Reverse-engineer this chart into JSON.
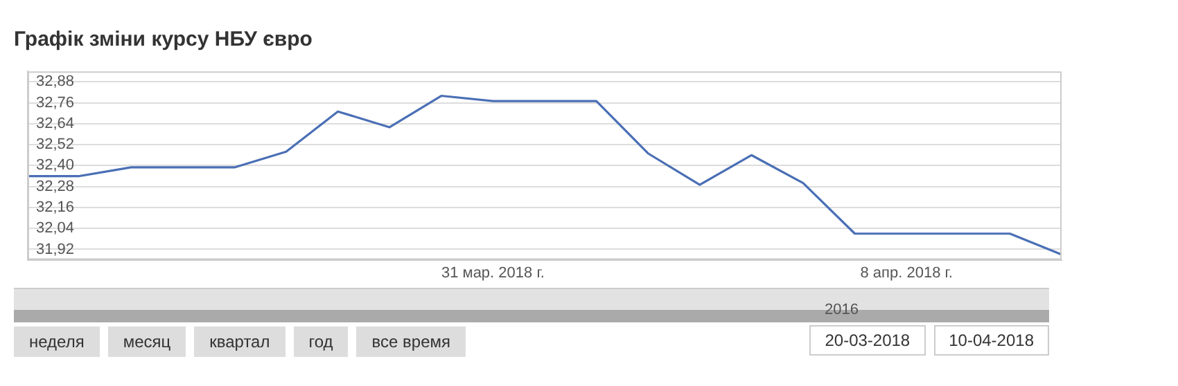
{
  "chart_data": {
    "type": "line",
    "title": "Графік зміни курсу НБУ євро",
    "x": [
      "2018-03-22",
      "2018-03-23",
      "2018-03-24",
      "2018-03-25",
      "2018-03-26",
      "2018-03-27",
      "2018-03-28",
      "2018-03-29",
      "2018-03-30",
      "2018-03-31",
      "2018-04-01",
      "2018-04-02",
      "2018-04-03",
      "2018-04-04",
      "2018-04-05",
      "2018-04-06",
      "2018-04-07",
      "2018-04-08",
      "2018-04-09",
      "2018-04-10",
      "2018-04-11"
    ],
    "series": [
      {
        "color": "#4a6fb5",
        "values": [
          32.34,
          32.34,
          32.39,
          32.39,
          32.39,
          32.48,
          32.71,
          32.62,
          32.8,
          32.77,
          32.77,
          32.77,
          32.47,
          32.29,
          32.46,
          32.3,
          32.01,
          32.01,
          32.01,
          32.01,
          31.89
        ]
      }
    ],
    "xlim": [
      "2018-03-22",
      "2018-04-11"
    ],
    "xticks": [
      {
        "value": "2018-03-31",
        "label": "31 мар. 2018 г."
      },
      {
        "value": "2018-04-08",
        "label": "8 апр. 2018 г."
      }
    ],
    "ylim": [
      31.86,
      32.94
    ],
    "yticks": [
      {
        "value": 31.92,
        "label": "31,92"
      },
      {
        "value": 32.04,
        "label": "32,04"
      },
      {
        "value": 32.16,
        "label": "32,16"
      },
      {
        "value": 32.28,
        "label": "32,28"
      },
      {
        "value": 32.4,
        "label": "32,40"
      },
      {
        "value": 32.52,
        "label": "32,52"
      },
      {
        "value": 32.64,
        "label": "32,64"
      },
      {
        "value": 32.76,
        "label": "32,76"
      },
      {
        "value": 32.88,
        "label": "32,88"
      }
    ],
    "grid": "y",
    "legend": false,
    "marker": "none",
    "line_style": "solid",
    "annotations": [
      "неделя",
      "месяц",
      "квартал",
      "год",
      "все время",
      "20-03-2018",
      "10-04-2018",
      "2016"
    ]
  }
}
